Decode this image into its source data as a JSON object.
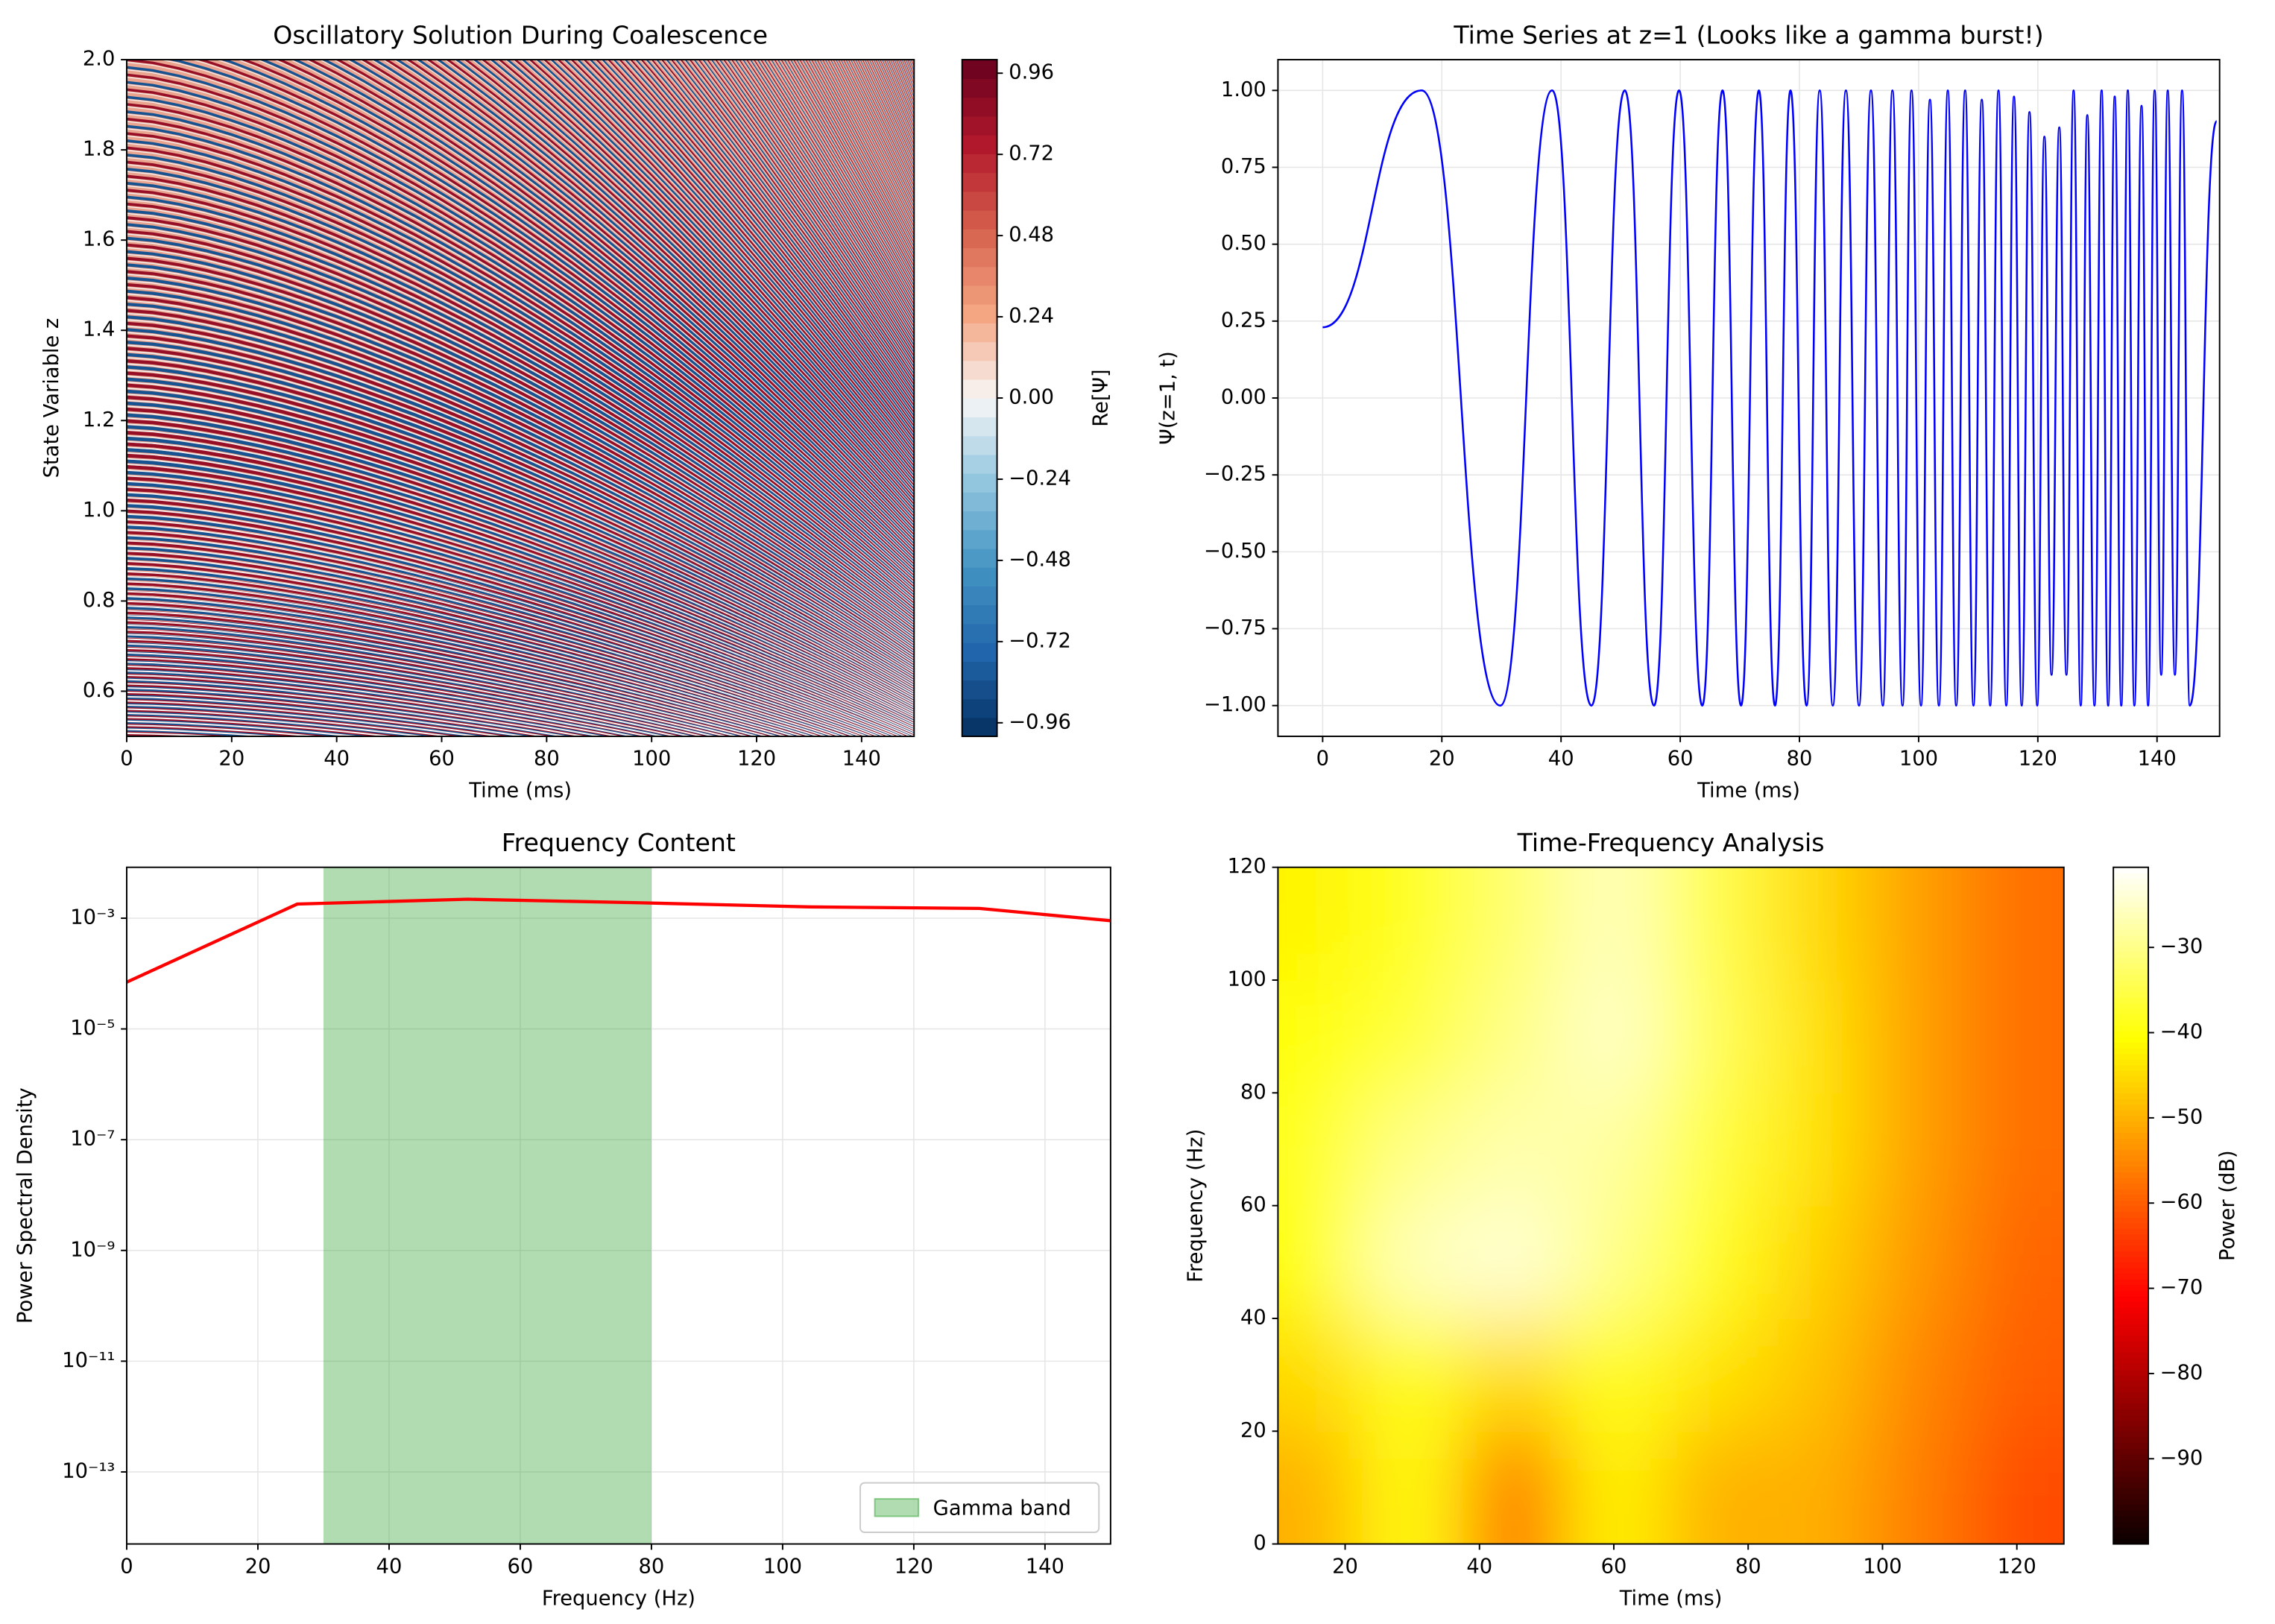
{
  "chart_data": [
    {
      "type": "heatmap",
      "title": "Oscillatory Solution During Coalescence",
      "xlabel": "Time (ms)",
      "ylabel": "State Variable z",
      "xlim": [
        0,
        150
      ],
      "ylim": [
        0.5,
        2.0
      ],
      "xticks": [
        0,
        20,
        40,
        60,
        80,
        100,
        120,
        140
      ],
      "yticks": [
        0.6,
        0.8,
        {
          "value": 1.0,
          "label": "1.0"
        },
        1.2,
        1.4,
        1.6,
        1.8,
        {
          "value": 2.0,
          "label": "2.0"
        }
      ],
      "grid": false,
      "colorbar": {
        "label": "Re[Ψ]",
        "colormap": "RdBu_r",
        "clim": [
          -1,
          1
        ],
        "ticks": [
          {
            "value": -0.96,
            "label": "−0.96"
          },
          {
            "value": -0.72,
            "label": "−0.72"
          },
          {
            "value": -0.48,
            "label": "−0.48"
          },
          {
            "value": -0.24,
            "label": "−0.24"
          },
          {
            "value": 0,
            "label": "0.00"
          },
          0.24,
          0.48,
          0.72,
          0.96
        ]
      }
    },
    {
      "type": "line",
      "title": "Time Series at z=1 (Looks like a gamma burst!)",
      "xlabel": "Time (ms)",
      "ylabel": "Ψ(z=1, t)",
      "xlim": [
        -7.5,
        150.5
      ],
      "ylim": [
        -1.1,
        1.1
      ],
      "xticks": [
        0,
        20,
        40,
        60,
        80,
        100,
        120,
        140
      ],
      "yticks": [
        {
          "value": -1,
          "label": "−1.00"
        },
        {
          "value": -0.75,
          "label": "−0.75"
        },
        {
          "value": -0.5,
          "label": "−0.50"
        },
        {
          "value": -0.25,
          "label": "−0.25"
        },
        {
          "value": 0,
          "label": "0.00"
        },
        0.25,
        {
          "value": 0.5,
          "label": "0.50"
        },
        0.75,
        {
          "value": 1,
          "label": "1.00"
        }
      ],
      "grid": true,
      "color": "#0000ff",
      "x": [
        0,
        16.6,
        29.8,
        38.5,
        45.1,
        50.7,
        55.6,
        59.8,
        63.7,
        67.1,
        70.2,
        73.2,
        75.9,
        78.5,
        81.2,
        83.4,
        85.6,
        87.8,
        90,
        92,
        94,
        95.6,
        97.3,
        98.8,
        100.4,
        101.9,
        103.4,
        104.9,
        106.3,
        107.8,
        109.2,
        110.6,
        112,
        113.4,
        114.7,
        116,
        117.3,
        118.6,
        119.9,
        121.1,
        122.3,
        123.6,
        124.8,
        126,
        127.2,
        128.3,
        129.5,
        130.7,
        131.8,
        132.9,
        134,
        135.1,
        136.2,
        137.4,
        138.5,
        139.6,
        140.7,
        141.8,
        143,
        144.2,
        145.5,
        150
      ],
      "values": [
        0.23,
        1,
        -1,
        1,
        -1,
        1,
        -1,
        1,
        -1,
        1,
        -1,
        1,
        -1,
        1,
        -1,
        1,
        -1,
        1,
        -1,
        1,
        -1,
        1,
        -1,
        1,
        -1,
        0.97,
        -1,
        1,
        -1,
        1,
        -1,
        0.97,
        -1,
        1,
        -1,
        0.98,
        -1,
        0.93,
        -1,
        0.85,
        -0.9,
        0.88,
        -0.9,
        1,
        -1,
        0.92,
        -1,
        1,
        -1,
        0.98,
        -1,
        1,
        -1,
        0.95,
        -1,
        1,
        -0.9,
        1,
        -0.9,
        1,
        -1,
        0.9
      ]
    },
    {
      "type": "line",
      "title": "Frequency Content",
      "xlabel": "Frequency (Hz)",
      "ylabel": "Power Spectral Density",
      "yscale": "log",
      "xlim": [
        0,
        150
      ],
      "ylim": [
        5e-15,
        0.0083
      ],
      "xticks": [
        0,
        20,
        40,
        60,
        80,
        100,
        120,
        140
      ],
      "yticks": [
        {
          "value": 1e-13,
          "label": "10⁻¹³"
        },
        {
          "value": 1e-11,
          "label": "10⁻¹¹"
        },
        {
          "value": 1e-09,
          "label": "10⁻⁹"
        },
        {
          "value": 1e-07,
          "label": "10⁻⁷"
        },
        {
          "value": 1e-05,
          "label": "10⁻⁵"
        },
        {
          "value": 0.001,
          "label": "10⁻³"
        }
      ],
      "grid": true,
      "color": "#ff0000",
      "x": [
        0,
        26,
        52,
        78,
        104,
        130,
        150
      ],
      "values": [
        7e-05,
        0.0018,
        0.0022,
        0.0019,
        0.0016,
        0.0015,
        0.0009
      ],
      "span": {
        "name": "Gamma band",
        "range": [
          30,
          80
        ],
        "color": "#2ca02c"
      },
      "legend": "lower right"
    },
    {
      "type": "heatmap",
      "title": "Time-Frequency Analysis",
      "xlabel": "Time (ms)",
      "ylabel": "Frequency (Hz)",
      "xlim": [
        10,
        127
      ],
      "ylim": [
        0,
        120
      ],
      "xticks": [
        20,
        40,
        60,
        80,
        100,
        120
      ],
      "yticks": [
        0,
        20,
        40,
        60,
        80,
        100,
        120
      ],
      "grid": false,
      "x": [
        15,
        30,
        45,
        60,
        75,
        90,
        105,
        120
      ],
      "y": [
        10,
        30,
        50,
        70,
        90,
        110
      ],
      "z": [
        [
          -50,
          -40,
          -58,
          -42,
          -50,
          -50,
          -56,
          -62
        ],
        [
          -45,
          -38,
          -45,
          -38,
          -44,
          -48,
          -55,
          -60
        ],
        [
          -40,
          -26,
          -24,
          -30,
          -38,
          -46,
          -53,
          -59
        ],
        [
          -38,
          -30,
          -27,
          -28,
          -36,
          -44,
          -52,
          -58
        ],
        [
          -40,
          -36,
          -30,
          -25,
          -34,
          -44,
          -52,
          -58
        ],
        [
          -42,
          -38,
          -32,
          -26,
          -35,
          -45,
          -52,
          -58
        ]
      ],
      "colorbar": {
        "label": "Power (dB)",
        "colormap": "hot",
        "clim": [
          -100,
          -20.6
        ],
        "ticks": [
          {
            "value": -90,
            "label": "−90"
          },
          {
            "value": -80,
            "label": "−80"
          },
          {
            "value": -70,
            "label": "−70"
          },
          {
            "value": -60,
            "label": "−60"
          },
          {
            "value": -50,
            "label": "−50"
          },
          {
            "value": -40,
            "label": "−40"
          },
          {
            "value": -30,
            "label": "−30"
          }
        ]
      }
    }
  ]
}
